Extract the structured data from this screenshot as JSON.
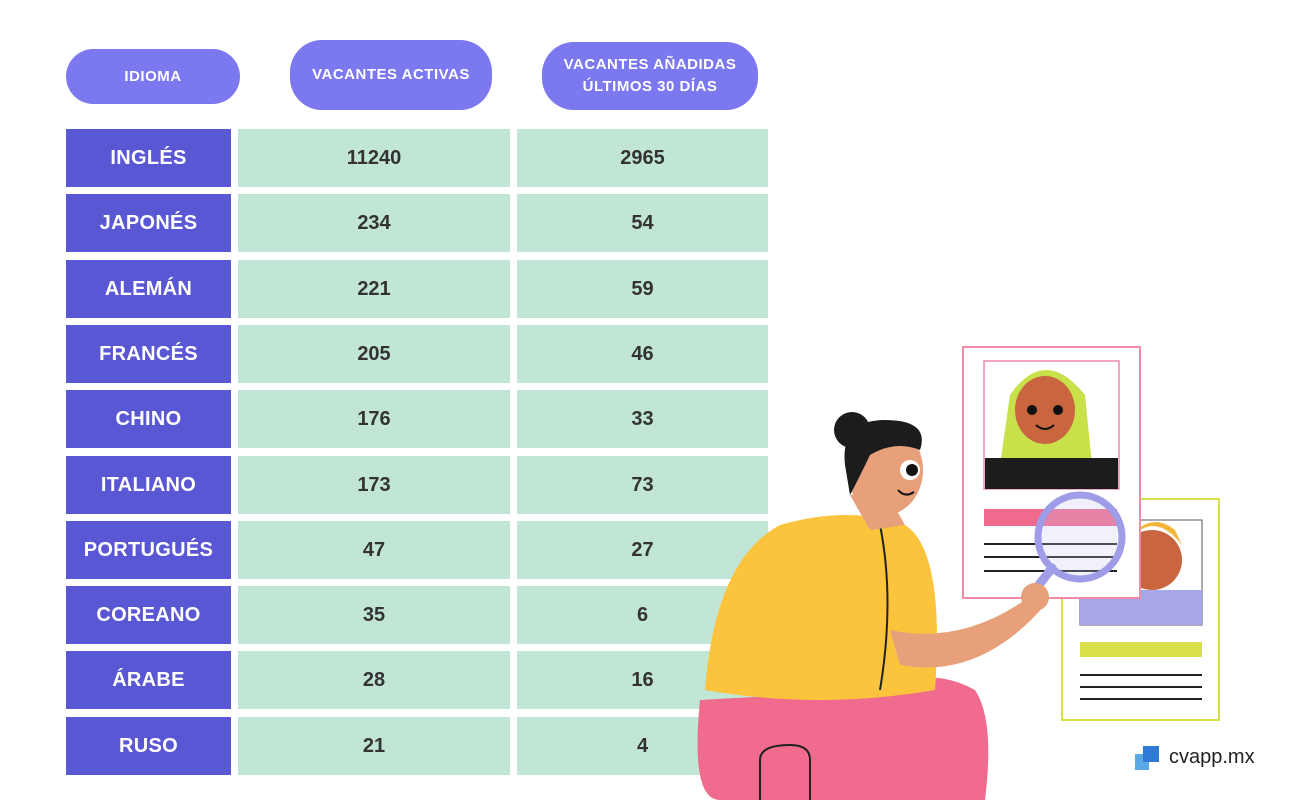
{
  "chart_data": {
    "type": "table",
    "columns": [
      "IDIOMA",
      "VACANTES ACTIVAS",
      "VACANTES AÑADIDAS\nÚLTIMOS 30 DÍAS"
    ],
    "rows": [
      {
        "idioma": "INGLÉS",
        "activas": "11240",
        "ultimos30": "2965"
      },
      {
        "idioma": "JAPONÉS",
        "activas": "234",
        "ultimos30": "54"
      },
      {
        "idioma": "ALEMÁN",
        "activas": "221",
        "ultimos30": "59"
      },
      {
        "idioma": "FRANCÉS",
        "activas": "205",
        "ultimos30": "46"
      },
      {
        "idioma": "CHINO",
        "activas": "176",
        "ultimos30": "33"
      },
      {
        "idioma": "ITALIANO",
        "activas": "173",
        "ultimos30": "73"
      },
      {
        "idioma": "PORTUGUÉS",
        "activas": "47",
        "ultimos30": "27"
      },
      {
        "idioma": "COREANO",
        "activas": "35",
        "ultimos30": "6"
      },
      {
        "idioma": "ÁRABE",
        "activas": "28",
        "ultimos30": "16"
      },
      {
        "idioma": "RUSO",
        "activas": "21",
        "ultimos30": "4"
      }
    ]
  },
  "brand": {
    "text": "cvapp.mx",
    "icon": "cvapp-logo-icon"
  },
  "illustration": {
    "icon": "recruiter-magnifying-glass-illustration"
  },
  "colors": {
    "header_bg": "#7b78f0",
    "language_bg": "#5a57d4",
    "value_bg": "#c2e6d6",
    "value_text": "#333333"
  }
}
